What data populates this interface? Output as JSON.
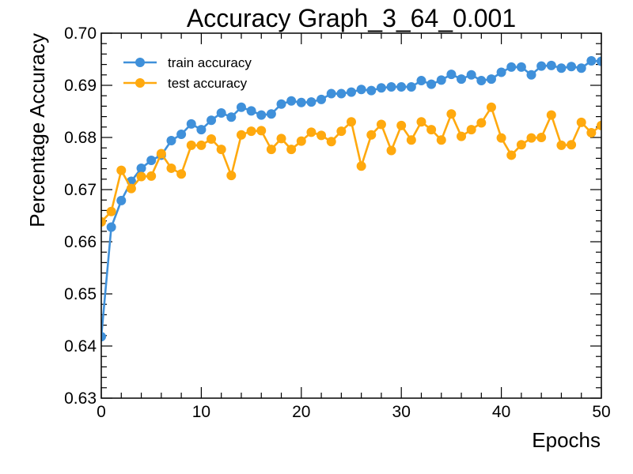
{
  "chart_data": {
    "type": "line",
    "title": "Accuracy Graph_3_64_0.001",
    "xlabel": "Epochs",
    "ylabel": "Percentage Accuracy",
    "xlim": [
      0,
      50
    ],
    "ylim": [
      0.63,
      0.7
    ],
    "x_ticks": [
      "0",
      "10",
      "20",
      "30",
      "40",
      "50"
    ],
    "y_ticks": [
      "0.63",
      "0.64",
      "0.65",
      "0.66",
      "0.67",
      "0.68",
      "0.69",
      "0.70"
    ],
    "grid": false,
    "legend_position": "top-left",
    "x": [
      0,
      1,
      2,
      3,
      4,
      5,
      6,
      7,
      8,
      9,
      10,
      11,
      12,
      13,
      14,
      15,
      16,
      17,
      18,
      19,
      20,
      21,
      22,
      23,
      24,
      25,
      26,
      27,
      28,
      29,
      30,
      31,
      32,
      33,
      34,
      35,
      36,
      37,
      38,
      39,
      40,
      41,
      42,
      43,
      44,
      45,
      46,
      47,
      48,
      49,
      50
    ],
    "series": [
      {
        "name": "train accuracy",
        "color": "#3f90da",
        "values": [
          0.6418,
          0.6628,
          0.6679,
          0.6716,
          0.6741,
          0.6756,
          0.6766,
          0.6794,
          0.6806,
          0.6826,
          0.6815,
          0.6833,
          0.6847,
          0.6839,
          0.6858,
          0.6851,
          0.6843,
          0.6845,
          0.6864,
          0.687,
          0.6867,
          0.6868,
          0.6873,
          0.6884,
          0.6884,
          0.6887,
          0.6892,
          0.689,
          0.6895,
          0.6897,
          0.6897,
          0.6897,
          0.6909,
          0.6902,
          0.691,
          0.6921,
          0.6912,
          0.692,
          0.6909,
          0.6912,
          0.6925,
          0.6935,
          0.6935,
          0.692,
          0.6937,
          0.6938,
          0.6933,
          0.6936,
          0.6933,
          0.6947,
          0.6946
        ]
      },
      {
        "name": "test accuracy",
        "color": "#ffa90e",
        "values": [
          0.6638,
          0.6658,
          0.6737,
          0.6702,
          0.6725,
          0.6726,
          0.6769,
          0.6741,
          0.673,
          0.6785,
          0.6785,
          0.6797,
          0.6777,
          0.6727,
          0.6805,
          0.6812,
          0.6813,
          0.6777,
          0.6798,
          0.6777,
          0.6793,
          0.681,
          0.6804,
          0.6792,
          0.6812,
          0.683,
          0.6745,
          0.6805,
          0.6825,
          0.6775,
          0.6823,
          0.6795,
          0.683,
          0.6815,
          0.6795,
          0.6845,
          0.6802,
          0.6815,
          0.6828,
          0.6858,
          0.6799,
          0.6766,
          0.6786,
          0.6799,
          0.68,
          0.6843,
          0.6785,
          0.6786,
          0.6829,
          0.6809,
          0.6823
        ]
      }
    ]
  }
}
